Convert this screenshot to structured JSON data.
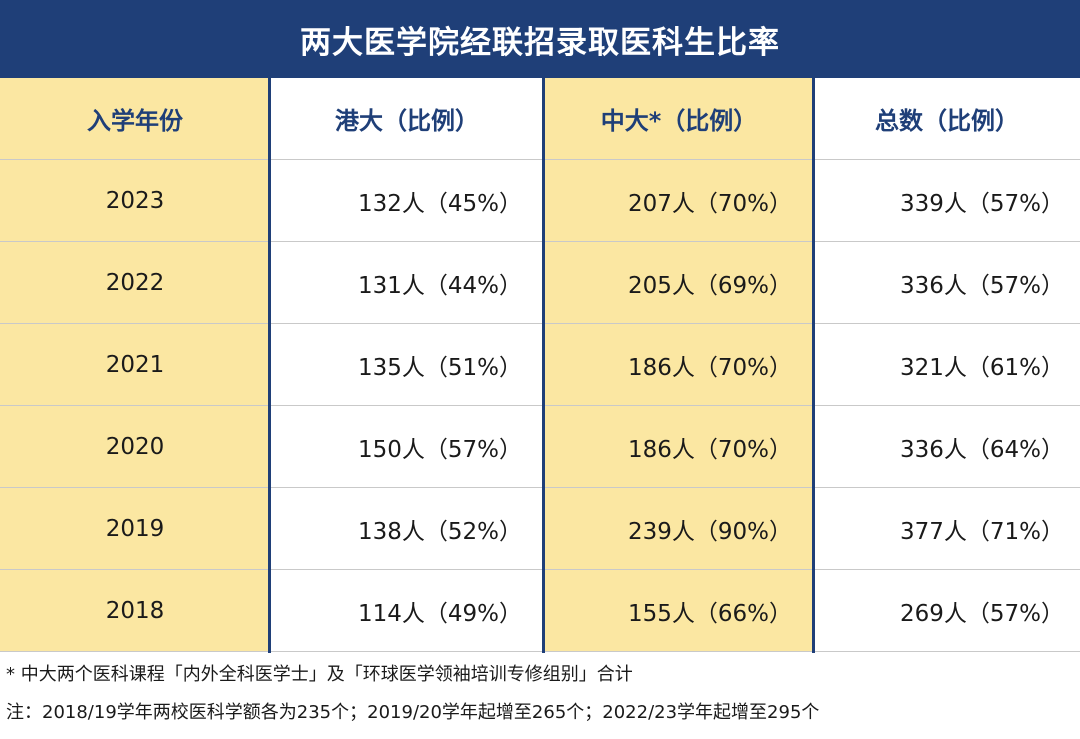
{
  "title": "两大医学院经联招录取医科生比率",
  "chart_data": {
    "type": "table",
    "title": "两大医学院经联招录取医科生比率",
    "columns": [
      "入学年份",
      "港大（比例）",
      "中大*（比例）",
      "总数（比例）"
    ],
    "rows": [
      {
        "year": "2023",
        "hku": "132人（45%）",
        "cuhk": "207人（70%）",
        "total": "339人（57%）"
      },
      {
        "year": "2022",
        "hku": "131人（44%）",
        "cuhk": "205人（69%）",
        "total": "336人（57%）"
      },
      {
        "year": "2021",
        "hku": "135人（51%）",
        "cuhk": "186人（70%）",
        "total": "321人（61%）"
      },
      {
        "year": "2020",
        "hku": "150人（57%）",
        "cuhk": "186人（70%）",
        "total": "336人（64%）"
      },
      {
        "year": "2019",
        "hku": "138人（52%）",
        "cuhk": "239人（90%）",
        "total": "377人（71%）"
      },
      {
        "year": "2018",
        "hku": "114人（49%）",
        "cuhk": "155人（66%）",
        "total": "269人（57%）"
      }
    ]
  },
  "notes": [
    "* 中大两个医科课程「内外全科医学士」及「环球医学领袖培训专修组别」合计",
    "注：2018/19学年两校医科学额各为235个；2019/20学年起增至265个；2022/23学年起增至295个"
  ],
  "colors": {
    "navy": "#1f3f78",
    "yellow": "#fbe7a2",
    "grid": "#c9c9c9"
  }
}
